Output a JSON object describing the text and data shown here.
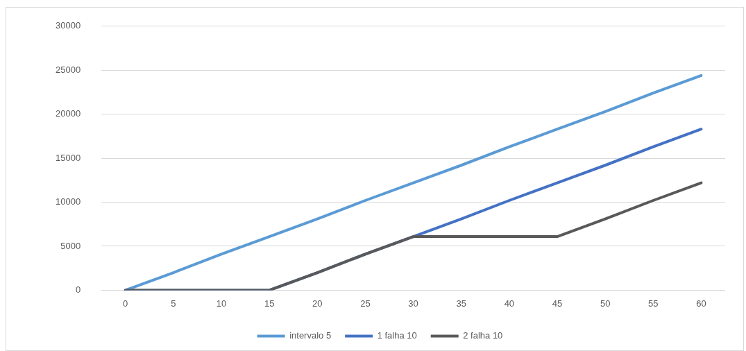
{
  "chart_data": {
    "type": "line",
    "categories": [
      "0",
      "5",
      "10",
      "15",
      "20",
      "25",
      "30",
      "35",
      "40",
      "45",
      "50",
      "55",
      "60"
    ],
    "series": [
      {
        "name": "intervalo 5",
        "color": "#5b9bd5",
        "values": [
          0,
          2000,
          4100,
          6100,
          8100,
          10200,
          12200,
          14200,
          16300,
          18300,
          20300,
          22400,
          24400
        ]
      },
      {
        "name": "1 falha 10",
        "color": "#4472c4",
        "values": [
          0,
          0,
          0,
          0,
          2000,
          4100,
          6100,
          8100,
          10200,
          12200,
          14200,
          16300,
          18300
        ]
      },
      {
        "name": "2 falha 10",
        "color": "#595959",
        "values": [
          0,
          0,
          0,
          0,
          2000,
          4100,
          6100,
          6100,
          6100,
          6100,
          8100,
          10200,
          12200
        ]
      }
    ],
    "ylim": [
      0,
      30000
    ],
    "yticks": [
      0,
      5000,
      10000,
      15000,
      20000,
      25000,
      30000
    ],
    "grid": "y",
    "legend": "bottom",
    "marker": "none",
    "line_style": "solid"
  }
}
